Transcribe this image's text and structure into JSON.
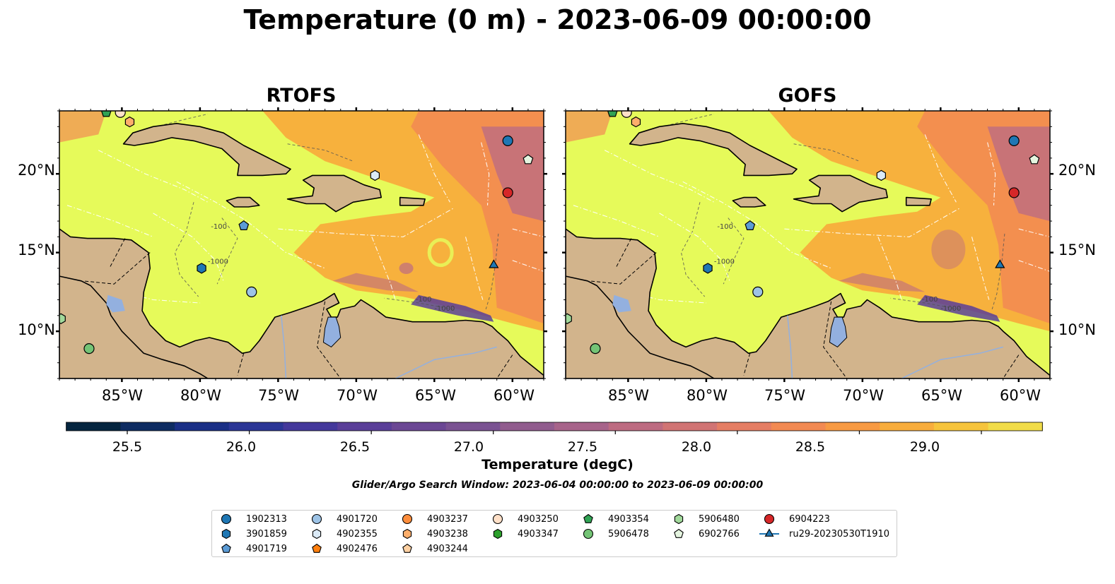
{
  "figure": {
    "title": "Temperature (0 m) - 2023-06-09 00:00:00",
    "panels": [
      {
        "title": "RTOFS",
        "variant": "rtofs"
      },
      {
        "title": "GOFS",
        "variant": "gofs"
      }
    ],
    "lon_ticks": [
      "85°W",
      "80°W",
      "75°W",
      "70°W",
      "65°W",
      "60°W"
    ],
    "lat_ticks": [
      "20°N",
      "15°N",
      "10°N"
    ],
    "lon_range": [
      -89,
      -58
    ],
    "lat_range": [
      7,
      24
    ],
    "contour_labels": [
      "-100",
      "-1000"
    ],
    "colors": {
      "land": "#d2b48c",
      "lake": "#93b0df",
      "warm_water": "#e6fa5a"
    }
  },
  "colorbar": {
    "label": "Temperature (degC)",
    "ticks": [
      "25.5",
      "26.0",
      "26.5",
      "27.0",
      "27.5",
      "28.0",
      "28.5",
      "29.0"
    ],
    "range": [
      25.25,
      29.25
    ],
    "step": 0.25,
    "colors": [
      "#05253f",
      "#0e2c62",
      "#1a2f86",
      "#2b3696",
      "#44389b",
      "#5a3e98",
      "#6b4794",
      "#7a5292",
      "#915c8e",
      "#a7638a",
      "#bd6b81",
      "#d17474",
      "#e57e64",
      "#f28a52",
      "#f79a43",
      "#f8ad3c",
      "#f6c43c",
      "#f1dc49"
    ],
    "extend_under": "#03212f",
    "extend_over": "#e6fa5a"
  },
  "search_window": "Glider/Argo Search Window: 2023-06-04 00:00:00 to 2023-06-09 00:00:00",
  "legend": [
    {
      "id": "1902313",
      "shape": "circle",
      "color": "#1f77b4"
    },
    {
      "id": "3901859",
      "shape": "hexagon",
      "color": "#1f77b4"
    },
    {
      "id": "4901719",
      "shape": "pentagon",
      "color": "#5b9bd5"
    },
    {
      "id": "4901720",
      "shape": "circle",
      "color": "#9dc3e6"
    },
    {
      "id": "4902355",
      "shape": "hexagon",
      "color": "#dbeaf7"
    },
    {
      "id": "4902476",
      "shape": "pentagon",
      "color": "#ff7f0e"
    },
    {
      "id": "4903237",
      "shape": "circle",
      "color": "#fd8d3c"
    },
    {
      "id": "4903238",
      "shape": "hexagon",
      "color": "#fdae6b"
    },
    {
      "id": "4903244",
      "shape": "pentagon",
      "color": "#fdd0a2"
    },
    {
      "id": "4903250",
      "shape": "circle",
      "color": "#ffe0c8"
    },
    {
      "id": "4903347",
      "shape": "hexagon",
      "color": "#2ca02c"
    },
    {
      "id": "4903354",
      "shape": "pentagon",
      "color": "#31a354"
    },
    {
      "id": "5906478",
      "shape": "circle",
      "color": "#74c476"
    },
    {
      "id": "5906480",
      "shape": "hexagon",
      "color": "#a1d99b"
    },
    {
      "id": "6902766",
      "shape": "pentagon",
      "color": "#e5f5e0"
    },
    {
      "id": "6904223",
      "shape": "circle",
      "color": "#d62728"
    },
    {
      "id": "ru29-20230530T1910",
      "shape": "triangle-line",
      "color": "#1f77b4"
    }
  ],
  "floats": [
    {
      "id": "1902313",
      "lon": -60.3,
      "lat": 22.1
    },
    {
      "id": "6904223",
      "lon": -60.3,
      "lat": 18.8
    },
    {
      "id": "6902766",
      "lon": -59.0,
      "lat": 20.9
    },
    {
      "id": "4902355",
      "lon": -68.8,
      "lat": 19.9
    },
    {
      "id": "4901719",
      "lon": -77.2,
      "lat": 16.7
    },
    {
      "id": "3901859",
      "lon": -79.9,
      "lat": 14.0
    },
    {
      "id": "4901720",
      "lon": -76.7,
      "lat": 12.5
    },
    {
      "id": "5906478",
      "lon": -87.1,
      "lat": 8.9
    },
    {
      "id": "5906480",
      "lon": -88.9,
      "lat": 10.8
    },
    {
      "id": "4903250",
      "lon": -85.1,
      "lat": 23.9
    },
    {
      "id": "4903238",
      "lon": -84.5,
      "lat": 23.3
    },
    {
      "id": "4903354",
      "lon": -86.0,
      "lat": 23.9
    },
    {
      "id": "ru29-20230530T1910",
      "lon": -61.2,
      "lat": 14.2
    }
  ]
}
